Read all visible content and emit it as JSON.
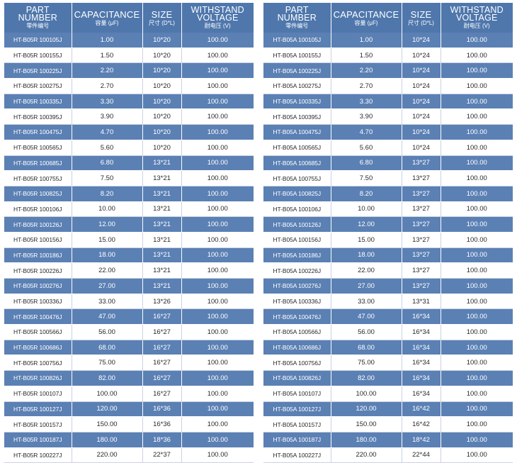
{
  "headers": {
    "part_number": {
      "line1": "PART",
      "line2": "NUMBER",
      "sub": "零件编号"
    },
    "capacitance": {
      "main": "CAPACITANCE",
      "sub": "容量 (μF)"
    },
    "size": {
      "main": "SIZE",
      "sub": "尺寸 (D*L)"
    },
    "voltage": {
      "line1": "WITHSTAND",
      "line2": "VOLTAGE",
      "sub": "耐电压 (V)"
    }
  },
  "tables": [
    {
      "rows": [
        [
          "HT-B05R 100105J",
          "1.00",
          "10*20",
          "100.00"
        ],
        [
          "HT-B05R 100155J",
          "1.50",
          "10*20",
          "100.00"
        ],
        [
          "HT-B05R 100225J",
          "2.20",
          "10*20",
          "100.00"
        ],
        [
          "HT-B05R 100275J",
          "2.70",
          "10*20",
          "100.00"
        ],
        [
          "HT-B05R 100335J",
          "3.30",
          "10*20",
          "100.00"
        ],
        [
          "HT-B05R 100395J",
          "3.90",
          "10*20",
          "100.00"
        ],
        [
          "HT-B05R 100475J",
          "4.70",
          "10*20",
          "100.00"
        ],
        [
          "HT-B05R 100565J",
          "5.60",
          "10*20",
          "100.00"
        ],
        [
          "HT-B05R 100685J",
          "6.80",
          "13*21",
          "100.00"
        ],
        [
          "HT-B05R 100755J",
          "7.50",
          "13*21",
          "100.00"
        ],
        [
          "HT-B05R 100825J",
          "8.20",
          "13*21",
          "100.00"
        ],
        [
          "HT-B05R 100106J",
          "10.00",
          "13*21",
          "100.00"
        ],
        [
          "HT-B05R 100126J",
          "12.00",
          "13*21",
          "100.00"
        ],
        [
          "HT-B05R 100156J",
          "15.00",
          "13*21",
          "100.00"
        ],
        [
          "HT-B05R 100186J",
          "18.00",
          "13*21",
          "100.00"
        ],
        [
          "HT-B05R 100226J",
          "22.00",
          "13*21",
          "100.00"
        ],
        [
          "HT-B05R 100276J",
          "27.00",
          "13*21",
          "100.00"
        ],
        [
          "HT-B05R 100336J",
          "33.00",
          "13*26",
          "100.00"
        ],
        [
          "HT-B05R 100476J",
          "47.00",
          "16*27",
          "100.00"
        ],
        [
          "HT-B05R 100566J",
          "56.00",
          "16*27",
          "100.00"
        ],
        [
          "HT-B05R 100686J",
          "68.00",
          "16*27",
          "100.00"
        ],
        [
          "HT-B05R 100756J",
          "75.00",
          "16*27",
          "100.00"
        ],
        [
          "HT-B05R 100826J",
          "82.00",
          "16*27",
          "100.00"
        ],
        [
          "HT-B05R 100107J",
          "100.00",
          "16*27",
          "100.00"
        ],
        [
          "HT-B05R 100127J",
          "120.00",
          "16*36",
          "100.00"
        ],
        [
          "HT-B05R 100157J",
          "150.00",
          "16*36",
          "100.00"
        ],
        [
          "HT-B05R 100187J",
          "180.00",
          "18*36",
          "100.00"
        ],
        [
          "HT-B05R 100227J",
          "220.00",
          "22*37",
          "100.00"
        ]
      ]
    },
    {
      "rows": [
        [
          "HT-B05A 100105J",
          "1.00",
          "10*24",
          "100.00"
        ],
        [
          "HT-B05A 100155J",
          "1.50",
          "10*24",
          "100.00"
        ],
        [
          "HT-B05A 100225J",
          "2.20",
          "10*24",
          "100.00"
        ],
        [
          "HT-B05A 100275J",
          "2.70",
          "10*24",
          "100.00"
        ],
        [
          "HT-B05A 100335J",
          "3.30",
          "10*24",
          "100.00"
        ],
        [
          "HT-B05A 100395J",
          "3.90",
          "10*24",
          "100.00"
        ],
        [
          "HT-B05A 100475J",
          "4.70",
          "10*24",
          "100.00"
        ],
        [
          "HT-B05A 100565J",
          "5.60",
          "10*24",
          "100.00"
        ],
        [
          "HT-B05A 100685J",
          "6.80",
          "13*27",
          "100.00"
        ],
        [
          "HT-B05A 100755J",
          "7.50",
          "13*27",
          "100.00"
        ],
        [
          "HT-B05A 100825J",
          "8.20",
          "13*27",
          "100.00"
        ],
        [
          "HT-B05A 100106J",
          "10.00",
          "13*27",
          "100.00"
        ],
        [
          "HT-B05A 100126J",
          "12.00",
          "13*27",
          "100.00"
        ],
        [
          "HT-B05A 100156J",
          "15.00",
          "13*27",
          "100.00"
        ],
        [
          "HT-B05A 100186J",
          "18.00",
          "13*27",
          "100.00"
        ],
        [
          "HT-B05A 100226J",
          "22.00",
          "13*27",
          "100.00"
        ],
        [
          "HT-B05A 100276J",
          "27.00",
          "13*27",
          "100.00"
        ],
        [
          "HT-B05A 100336J",
          "33.00",
          "13*31",
          "100.00"
        ],
        [
          "HT-B05A 100476J",
          "47.00",
          "16*34",
          "100.00"
        ],
        [
          "HT-B05A 100566J",
          "56.00",
          "16*34",
          "100.00"
        ],
        [
          "HT-B05A 100686J",
          "68.00",
          "16*34",
          "100.00"
        ],
        [
          "HT-B05A 100756J",
          "75.00",
          "16*34",
          "100.00"
        ],
        [
          "HT-B05A 100826J",
          "82.00",
          "16*34",
          "100.00"
        ],
        [
          "HT-B05A 100107J",
          "100.00",
          "16*34",
          "100.00"
        ],
        [
          "HT-B05A 100127J",
          "120.00",
          "16*42",
          "100.00"
        ],
        [
          "HT-B05A 100157J",
          "150.00",
          "16*42",
          "100.00"
        ],
        [
          "HT-B05A 100187J",
          "180.00",
          "18*42",
          "100.00"
        ],
        [
          "HT-B05A 100227J",
          "220.00",
          "22*44",
          "100.00"
        ]
      ]
    }
  ],
  "colors": {
    "header_bg": "#4f77ac",
    "stripe_bg": "#5b80b4",
    "plain_bg": "#ffffff"
  }
}
